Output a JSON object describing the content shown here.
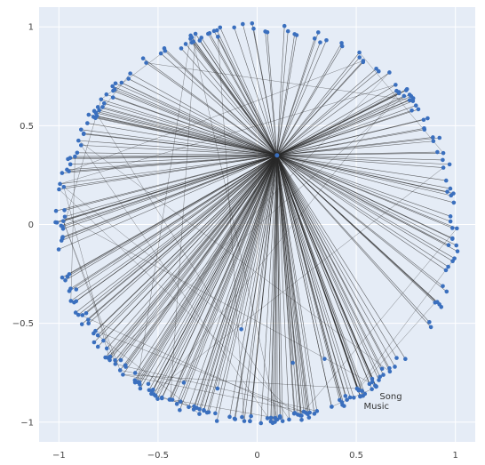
{
  "chart_data": {
    "type": "scatter",
    "title": "",
    "xlabel": "",
    "ylabel": "",
    "xlim": [
      -1.1,
      1.1
    ],
    "ylim": [
      -1.1,
      1.1
    ],
    "grid": true,
    "x_ticks": [
      {
        "value": -1,
        "label": "−1"
      },
      {
        "value": -0.5,
        "label": "−0.5"
      },
      {
        "value": 0,
        "label": "0"
      },
      {
        "value": 0.5,
        "label": "0.5"
      },
      {
        "value": 1,
        "label": "1"
      }
    ],
    "y_ticks": [
      {
        "value": 1,
        "label": "1"
      },
      {
        "value": 0.5,
        "label": "0.5"
      },
      {
        "value": 0,
        "label": "0"
      },
      {
        "value": -0.5,
        "label": "−0.5"
      },
      {
        "value": -1,
        "label": "−1"
      }
    ],
    "hub": {
      "x": 0.1,
      "y": 0.35
    },
    "labeled_nodes": [
      {
        "label": "Song",
        "x": 0.6,
        "y": -0.82
      },
      {
        "label": "Music",
        "x": 0.52,
        "y": -0.87
      }
    ],
    "inner_nodes": [
      {
        "x": -0.08,
        "y": -0.53
      },
      {
        "x": 0.34,
        "y": -0.68
      },
      {
        "x": 0.18,
        "y": -0.7
      },
      {
        "x": -0.52,
        "y": -0.86
      },
      {
        "x": -0.37,
        "y": -0.8
      },
      {
        "x": -0.2,
        "y": -0.83
      },
      {
        "x": 0.63,
        "y": -0.73
      }
    ],
    "colors": {
      "background": "#e5ecf6",
      "grid": "#ffffff",
      "node": "#3a6fbe",
      "edge": "#2a2a2a"
    }
  }
}
